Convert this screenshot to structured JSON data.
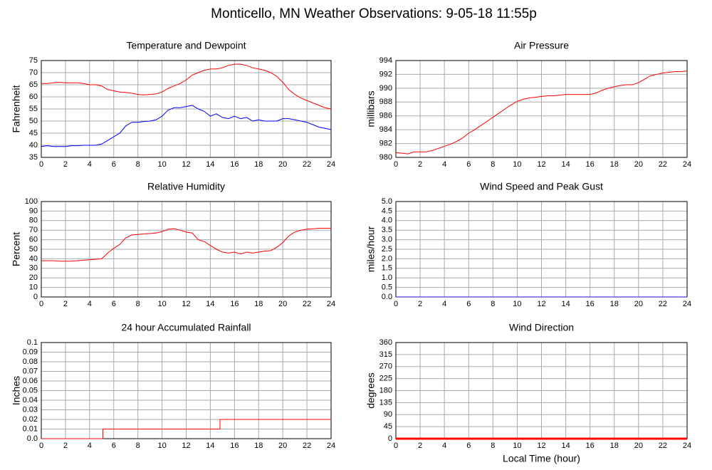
{
  "title": "Monticello, MN Weather Observations: 9-05-18 11:55p",
  "chart_data": [
    {
      "type": "line",
      "title": "Temperature and Dewpoint",
      "y_label": "Fahrenheit",
      "xlim": [
        0,
        24
      ],
      "xticks": [
        0,
        2,
        4,
        6,
        8,
        10,
        12,
        14,
        16,
        18,
        20,
        22,
        24
      ],
      "ylim": [
        35,
        75
      ],
      "yticks": [
        35,
        40,
        45,
        50,
        55,
        60,
        65,
        70,
        75
      ],
      "grid": true,
      "x": [
        0,
        0.5,
        1,
        1.5,
        2,
        2.5,
        3,
        3.5,
        4,
        4.5,
        5,
        5.5,
        6,
        6.5,
        7,
        7.5,
        8,
        8.5,
        9,
        9.5,
        10,
        10.5,
        11,
        11.5,
        12,
        12.5,
        13,
        13.5,
        14,
        14.5,
        15,
        15.5,
        16,
        16.5,
        17,
        17.5,
        18,
        18.5,
        19,
        19.5,
        20,
        20.5,
        21,
        21.5,
        22,
        22.5,
        23,
        23.5,
        24
      ],
      "series": [
        {
          "name": "Temperature",
          "color": "#ff0000",
          "values": [
            65.5,
            65.5,
            65.8,
            66,
            65.8,
            65.8,
            65.8,
            65.5,
            65,
            65,
            64.5,
            63,
            62.5,
            62,
            61.8,
            61.5,
            61,
            60.8,
            61,
            61.2,
            62,
            63.5,
            64.5,
            65.5,
            67,
            69,
            70,
            71,
            71.5,
            71.5,
            72,
            73,
            73.5,
            73.5,
            73,
            72,
            71.5,
            71,
            70,
            68.5,
            66,
            63,
            61,
            59.5,
            58.5,
            57.5,
            56.5,
            55.5,
            55
          ]
        },
        {
          "name": "Dewpoint",
          "color": "#0000ff",
          "values": [
            39.5,
            39.8,
            39.5,
            39.5,
            39.5,
            39.8,
            39.8,
            40,
            40,
            40,
            40.5,
            42,
            43.5,
            45,
            48,
            49.5,
            49.5,
            49.8,
            50,
            50.5,
            52,
            54.5,
            55.5,
            55.5,
            56,
            56.5,
            55,
            54,
            52,
            53,
            51.5,
            51,
            52,
            51,
            51.5,
            50,
            50.5,
            50,
            50,
            50,
            51,
            51,
            50.5,
            50,
            49.5,
            48.5,
            47.5,
            47,
            46.5
          ]
        }
      ]
    },
    {
      "type": "line",
      "title": "Air Pressure",
      "y_label": "millibars",
      "xlim": [
        0,
        24
      ],
      "xticks": [
        0,
        2,
        4,
        6,
        8,
        10,
        12,
        14,
        16,
        18,
        20,
        22,
        24
      ],
      "ylim": [
        980,
        994
      ],
      "yticks": [
        980,
        982,
        984,
        986,
        988,
        990,
        992,
        994
      ],
      "grid": true,
      "x": [
        0,
        0.5,
        1,
        1.5,
        2,
        2.5,
        3,
        3.5,
        4,
        4.5,
        5,
        5.5,
        6,
        6.5,
        7,
        7.5,
        8,
        8.5,
        9,
        9.5,
        10,
        10.5,
        11,
        11.5,
        12,
        12.5,
        13,
        13.5,
        14,
        14.5,
        15,
        15.5,
        16,
        16.5,
        17,
        17.5,
        18,
        18.5,
        19,
        19.5,
        20,
        20.5,
        21,
        21.5,
        22,
        22.5,
        23,
        23.5,
        24
      ],
      "series": [
        {
          "name": "Pressure",
          "color": "#ff0000",
          "values": [
            980.7,
            980.6,
            980.5,
            980.8,
            980.8,
            980.8,
            981,
            981.3,
            981.6,
            981.9,
            982.3,
            982.8,
            983.5,
            984,
            984.6,
            985.2,
            985.8,
            986.4,
            987,
            987.6,
            988.1,
            988.4,
            988.6,
            988.7,
            988.8,
            988.9,
            988.9,
            989,
            989.1,
            989.1,
            989.1,
            989.1,
            989.1,
            989.3,
            989.7,
            990,
            990.2,
            990.4,
            990.5,
            990.5,
            990.8,
            991.3,
            991.8,
            992,
            992.2,
            992.3,
            992.4,
            992.4,
            992.5
          ]
        }
      ]
    },
    {
      "type": "line",
      "title": "Relative Humidity",
      "y_label": "Percent",
      "xlim": [
        0,
        24
      ],
      "xticks": [
        0,
        2,
        4,
        6,
        8,
        10,
        12,
        14,
        16,
        18,
        20,
        22,
        24
      ],
      "ylim": [
        0,
        100
      ],
      "yticks": [
        0,
        10,
        20,
        30,
        40,
        50,
        60,
        70,
        80,
        90,
        100
      ],
      "grid": true,
      "x": [
        0,
        0.5,
        1,
        1.5,
        2,
        2.5,
        3,
        3.5,
        4,
        4.5,
        5,
        5.5,
        6,
        6.5,
        7,
        7.5,
        8,
        8.5,
        9,
        9.5,
        10,
        10.5,
        11,
        11.5,
        12,
        12.5,
        13,
        13.5,
        14,
        14.5,
        15,
        15.5,
        16,
        16.5,
        17,
        17.5,
        18,
        18.5,
        19,
        19.5,
        20,
        20.5,
        21,
        21.5,
        22,
        22.5,
        23,
        23.5,
        24
      ],
      "series": [
        {
          "name": "Humidity",
          "color": "#ff0000",
          "values": [
            38,
            38,
            38,
            37.5,
            37.5,
            37.5,
            38,
            38.5,
            39,
            39.5,
            40,
            46,
            51,
            55,
            62,
            65,
            65.5,
            66,
            66.5,
            67,
            68.5,
            71,
            71.5,
            70,
            68,
            67,
            60,
            58,
            54,
            50,
            47,
            46,
            47,
            45,
            47,
            46,
            47,
            48,
            48.5,
            52,
            57,
            64,
            68,
            70,
            71,
            71.5,
            72,
            72,
            72
          ]
        }
      ]
    },
    {
      "type": "line",
      "title": "Wind Speed and Peak Gust",
      "y_label": "miles/hour",
      "xlim": [
        0,
        24
      ],
      "xticks": [
        0,
        2,
        4,
        6,
        8,
        10,
        12,
        14,
        16,
        18,
        20,
        22,
        24
      ],
      "ylim": [
        0,
        5
      ],
      "yticks": [
        {
          "value": 0,
          "label": "0.0"
        },
        0.5,
        {
          "value": 1,
          "label": "1.0"
        },
        1.5,
        {
          "value": 2,
          "label": "2.0"
        },
        2.5,
        {
          "value": 3,
          "label": "3.0"
        },
        3.5,
        {
          "value": 4,
          "label": "4.0"
        },
        4.5,
        {
          "value": 5,
          "label": "5.0"
        }
      ],
      "grid": true,
      "x": [
        0,
        24
      ],
      "series": [
        {
          "name": "Wind Speed",
          "color": "#3300cc",
          "values": [
            0,
            0
          ]
        }
      ]
    },
    {
      "type": "line",
      "title": "24 hour Accumulated Rainfall",
      "y_label": "Inches",
      "xlim": [
        0,
        24
      ],
      "xticks": [
        0,
        2,
        4,
        6,
        8,
        10,
        12,
        14,
        16,
        18,
        20,
        22,
        24
      ],
      "ylim": [
        0,
        0.1
      ],
      "yticks": [
        {
          "value": 0,
          "label": "0.0"
        },
        0.01,
        0.02,
        0.03,
        0.04,
        0.05,
        0.06,
        0.07,
        0.08,
        0.09,
        0.1
      ],
      "grid": true,
      "x": [
        0,
        5.1,
        5.1,
        14.8,
        14.8,
        24
      ],
      "series": [
        {
          "name": "Rainfall",
          "color": "#ff0000",
          "values": [
            0,
            0,
            0.01,
            0.01,
            0.02,
            0.02
          ]
        }
      ]
    },
    {
      "type": "line",
      "title": "Wind Direction",
      "y_label": "degrees",
      "x_label": "Local Time (hour)",
      "xlim": [
        0,
        24
      ],
      "xticks": [
        0,
        2,
        4,
        6,
        8,
        10,
        12,
        14,
        16,
        18,
        20,
        22,
        24
      ],
      "ylim": [
        0,
        360
      ],
      "yticks": [
        0,
        45,
        90,
        135,
        180,
        225,
        270,
        315,
        360
      ],
      "grid": true,
      "x": [
        0,
        24
      ],
      "series": [
        {
          "name": "Direction",
          "color": "#ff0000",
          "line_width": 3,
          "values": [
            0,
            0
          ]
        }
      ]
    }
  ]
}
